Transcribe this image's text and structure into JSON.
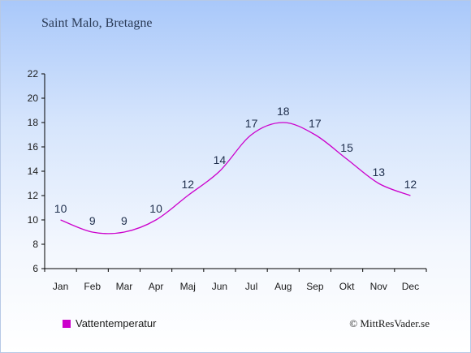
{
  "chart_data": {
    "type": "line",
    "title": "Saint Malo, Bretagne",
    "categories": [
      "Jan",
      "Feb",
      "Mar",
      "Apr",
      "Maj",
      "Jun",
      "Jul",
      "Aug",
      "Sep",
      "Okt",
      "Nov",
      "Dec"
    ],
    "series": [
      {
        "name": "Vattentemperatur",
        "values": [
          10,
          9,
          9,
          10,
          12,
          14,
          17,
          18,
          17,
          15,
          13,
          12
        ],
        "color": "#cc00cc"
      }
    ],
    "data_labels": [
      "10",
      "9",
      "9",
      "10",
      "12",
      "14",
      "17",
      "18",
      "17",
      "15",
      "13",
      "12"
    ],
    "ylim": [
      6,
      22
    ],
    "yticks": [
      6,
      8,
      10,
      12,
      14,
      16,
      18,
      20,
      22
    ],
    "ytick_labels": [
      "6",
      "8",
      "10",
      "12",
      "14",
      "16",
      "18",
      "20",
      "22"
    ],
    "xlabel": "",
    "ylabel": "",
    "grid": false,
    "legend": {
      "position": "bottom-left",
      "label": "Vattentemperatur",
      "color": "#cc00cc"
    }
  },
  "credit": "© MittResVader.se",
  "colors": {
    "axis": "#000000",
    "label_text": "#1f2f4d"
  }
}
